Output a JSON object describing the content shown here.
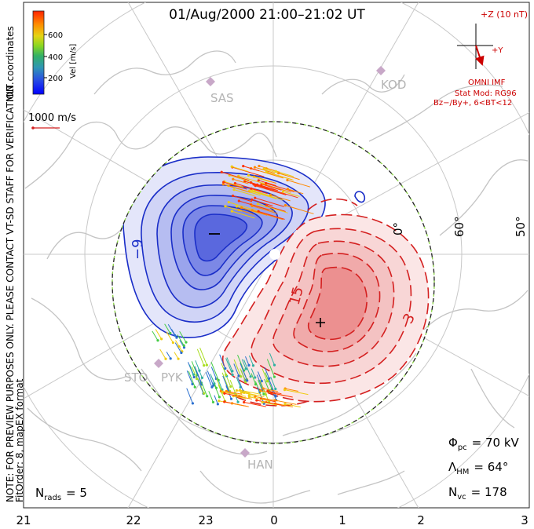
{
  "title": "01/Aug/2000 21:00–21:02 UT",
  "side_note": {
    "line1": "NOTE: FOR PREVIEW PURPOSES ONLY. PLEASE CONTACT VT-SD STAFF FOR VERIFICATION.",
    "line2": "FitOrder: 8, mapEX format"
  },
  "coords_label": "MLT coordinates",
  "colorbar": {
    "label": "Vel [m/s]",
    "ticks": [
      "200",
      "400",
      "600"
    ],
    "colors": [
      "#0000ff",
      "#2a6fd0",
      "#2fb0a0",
      "#44cc44",
      "#aadd22",
      "#eecc11",
      "#ff8800",
      "#ff3300"
    ]
  },
  "scale_vector": {
    "label": "1000 m/s"
  },
  "imf": {
    "z_label": "+Z (10 nT)",
    "y_label": "+Y",
    "source": "OMNI IMF",
    "stat_mod": "Stat Mod: RG96",
    "condition": "Bz−/By+, 6<BT<12"
  },
  "stations": [
    "SAS",
    "KOD",
    "STO",
    "PYK",
    "HAN"
  ],
  "lat_labels": [
    "0°",
    "60°",
    "50°"
  ],
  "contour_labels": {
    "neg": "−9",
    "pos1": "15",
    "pos2": "3"
  },
  "stats": {
    "phi_pc": "Φ",
    "phi_sub": "pc",
    "phi_val": "= 70 kV",
    "lambda": "Λ",
    "lambda_sub": "HM",
    "lambda_val": "= 64°",
    "nvc": "N",
    "nvc_sub": "vc",
    "nvc_val": "= 178",
    "nrads": "N",
    "nrads_sub": "rads",
    "nrads_val": "= 5"
  },
  "mlt_ticks": [
    "21",
    "22",
    "23",
    "0",
    "1",
    "2",
    "3"
  ],
  "colors": {
    "negative_contour": "#1a2ec8",
    "positive_contour": "#d42020",
    "negative_fill": "#5a6ee6",
    "positive_fill": "#ee6a6a",
    "coast": "#c8c8c8",
    "grid": "#c8c8c8",
    "imf_vector": "#cc0000"
  }
}
